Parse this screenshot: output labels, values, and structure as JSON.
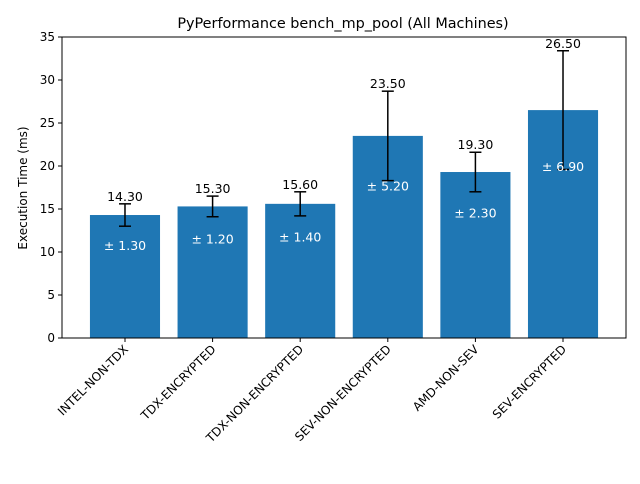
{
  "chart_data": {
    "type": "bar",
    "title": "PyPerformance bench_mp_pool (All Machines)",
    "xlabel": "",
    "ylabel": "Execution Time (ms)",
    "ylim": [
      0,
      35
    ],
    "yticks": [
      0,
      5,
      10,
      15,
      20,
      25,
      30,
      35
    ],
    "grid": false,
    "legend": "none",
    "categories": [
      "INTEL-NON-TDX",
      "TDX-ENCRYPTED",
      "TDX-NON-ENCRYPTED",
      "SEV-NON-ENCRYPTED",
      "AMD-NON-SEV",
      "SEV-ENCRYPTED"
    ],
    "values": [
      14.3,
      15.3,
      15.6,
      23.5,
      19.3,
      26.5
    ],
    "errors": [
      1.3,
      1.2,
      1.4,
      5.2,
      2.3,
      6.9
    ],
    "value_labels": [
      "14.30",
      "15.30",
      "15.60",
      "23.50",
      "19.30",
      "26.50"
    ],
    "error_labels": [
      "± 1.30",
      "± 1.20",
      "± 1.40",
      "± 5.20",
      "± 2.30",
      "± 6.90"
    ],
    "colors": {
      "bar": "#1f77b4",
      "error_bar": "#000000",
      "error_label": "#ffffff",
      "value_label": "#000000",
      "axis": "#000000"
    }
  }
}
